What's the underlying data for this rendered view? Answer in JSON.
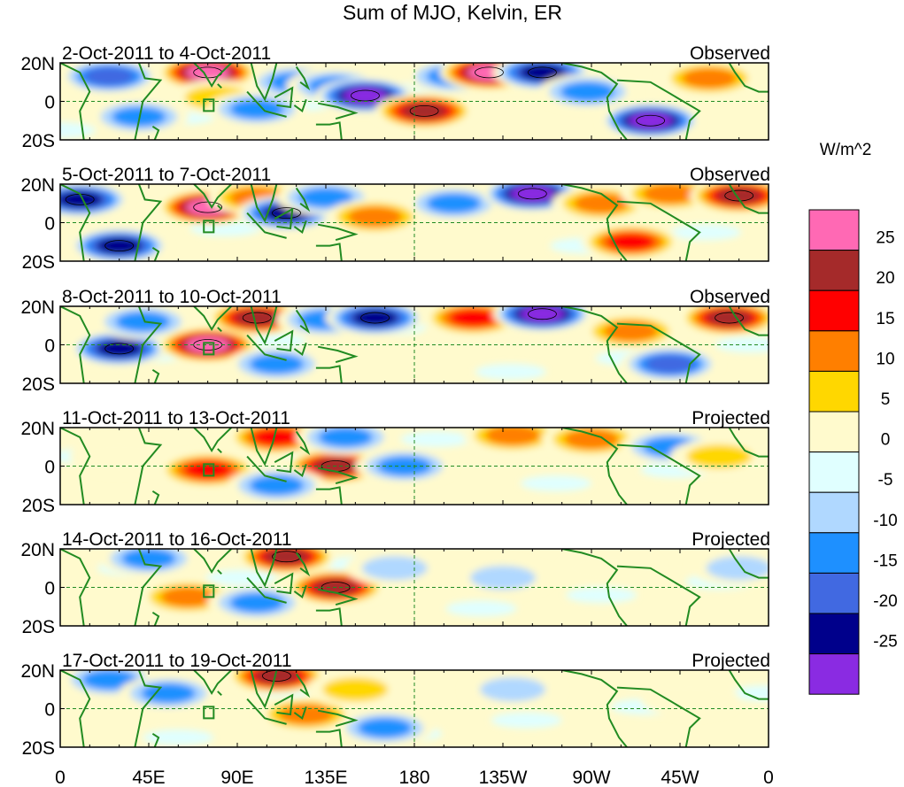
{
  "chart_data": {
    "type": "heatmap",
    "title": "Sum of MJO, Kelvin, ER",
    "colorbar": {
      "units": "W/m^2",
      "labels": [
        "25",
        "20",
        "15",
        "10",
        "5",
        "0",
        "-5",
        "-10",
        "-15",
        "-20",
        "-25"
      ],
      "colors": [
        "#ff69b4",
        "#a52a2a",
        "#ff0000",
        "#ff7f00",
        "#ffd700",
        "#fffacd",
        "#e0ffff",
        "#b0d8ff",
        "#1e90ff",
        "#4169e1",
        "#00008b",
        "#8a2be2"
      ]
    },
    "x_ticks": [
      "0",
      "45E",
      "90E",
      "135E",
      "180",
      "135W",
      "90W",
      "45W",
      "0"
    ],
    "x_range_lon": [
      0,
      360
    ],
    "y_ticks": [
      "20N",
      "0",
      "20S"
    ],
    "y_range_lat": [
      -20,
      20
    ],
    "panels": [
      {
        "date_range": "2-Oct-2011 to 4-Oct-2011",
        "status": "Observed"
      },
      {
        "date_range": "5-Oct-2011 to 7-Oct-2011",
        "status": "Observed"
      },
      {
        "date_range": "8-Oct-2011 to 10-Oct-2011",
        "status": "Observed"
      },
      {
        "date_range": "11-Oct-2011 to 13-Oct-2011",
        "status": "Projected"
      },
      {
        "date_range": "14-Oct-2011 to 16-Oct-2011",
        "status": "Projected"
      },
      {
        "date_range": "17-Oct-2011 to 19-Oct-2011",
        "status": "Projected"
      }
    ],
    "anomalies": [
      [
        {
          "lon": 25,
          "lat": 13,
          "v": -18
        },
        {
          "lon": 40,
          "lat": -8,
          "v": -12
        },
        {
          "lon": 75,
          "lat": 15,
          "v": 28
        },
        {
          "lon": 80,
          "lat": 2,
          "v": 8
        },
        {
          "lon": 100,
          "lat": -4,
          "v": -12
        },
        {
          "lon": 120,
          "lat": 10,
          "v": -10
        },
        {
          "lon": 140,
          "lat": 8,
          "v": -10
        },
        {
          "lon": 155,
          "lat": 3,
          "v": -27
        },
        {
          "lon": 185,
          "lat": -5,
          "v": 20
        },
        {
          "lon": 200,
          "lat": 13,
          "v": -14
        },
        {
          "lon": 218,
          "lat": 15,
          "v": 26
        },
        {
          "lon": 245,
          "lat": 15,
          "v": -22
        },
        {
          "lon": 268,
          "lat": 5,
          "v": -10
        },
        {
          "lon": 300,
          "lat": -10,
          "v": -25
        },
        {
          "lon": 330,
          "lat": 12,
          "v": 14
        }
      ],
      [
        {
          "lon": 10,
          "lat": 12,
          "v": -20
        },
        {
          "lon": 30,
          "lat": -12,
          "v": -22
        },
        {
          "lon": 75,
          "lat": 8,
          "v": 28
        },
        {
          "lon": 100,
          "lat": 13,
          "v": 12
        },
        {
          "lon": 115,
          "lat": 5,
          "v": -22
        },
        {
          "lon": 135,
          "lat": 13,
          "v": -14
        },
        {
          "lon": 160,
          "lat": 3,
          "v": 14
        },
        {
          "lon": 200,
          "lat": 10,
          "v": -10
        },
        {
          "lon": 240,
          "lat": 15,
          "v": -27
        },
        {
          "lon": 275,
          "lat": 10,
          "v": 12
        },
        {
          "lon": 290,
          "lat": -10,
          "v": 18
        },
        {
          "lon": 310,
          "lat": 15,
          "v": 10
        },
        {
          "lon": 345,
          "lat": 14,
          "v": 20
        }
      ],
      [
        {
          "lon": 30,
          "lat": -2,
          "v": -22
        },
        {
          "lon": 42,
          "lat": 12,
          "v": -10
        },
        {
          "lon": 75,
          "lat": 0,
          "v": 28
        },
        {
          "lon": 100,
          "lat": 14,
          "v": 22
        },
        {
          "lon": 135,
          "lat": 13,
          "v": -14
        },
        {
          "lon": 160,
          "lat": 14,
          "v": -24
        },
        {
          "lon": 110,
          "lat": -10,
          "v": -10
        },
        {
          "lon": 210,
          "lat": 14,
          "v": 18
        },
        {
          "lon": 245,
          "lat": 16,
          "v": -27
        },
        {
          "lon": 290,
          "lat": 7,
          "v": 10
        },
        {
          "lon": 310,
          "lat": -10,
          "v": -18
        },
        {
          "lon": 340,
          "lat": 14,
          "v": 24
        }
      ],
      [
        {
          "lon": 30,
          "lat": 5,
          "v": 4
        },
        {
          "lon": 75,
          "lat": -2,
          "v": 18
        },
        {
          "lon": 110,
          "lat": 15,
          "v": 18
        },
        {
          "lon": 140,
          "lat": 0,
          "v": 20
        },
        {
          "lon": 110,
          "lat": -10,
          "v": -14
        },
        {
          "lon": 145,
          "lat": 15,
          "v": -12
        },
        {
          "lon": 175,
          "lat": 0,
          "v": -10
        },
        {
          "lon": 230,
          "lat": 16,
          "v": 12
        },
        {
          "lon": 270,
          "lat": 14,
          "v": 14
        },
        {
          "lon": 310,
          "lat": 10,
          "v": -12
        },
        {
          "lon": 335,
          "lat": 5,
          "v": 8
        }
      ],
      [
        {
          "lon": 45,
          "lat": 15,
          "v": -10
        },
        {
          "lon": 65,
          "lat": -5,
          "v": 14
        },
        {
          "lon": 115,
          "lat": 16,
          "v": 20
        },
        {
          "lon": 140,
          "lat": 0,
          "v": 22
        },
        {
          "lon": 100,
          "lat": -8,
          "v": -10
        },
        {
          "lon": 170,
          "lat": 10,
          "v": -8
        },
        {
          "lon": 225,
          "lat": 5,
          "v": -8
        },
        {
          "lon": 280,
          "lat": 10,
          "v": 4
        },
        {
          "lon": 345,
          "lat": 10,
          "v": -8
        }
      ],
      [
        {
          "lon": 25,
          "lat": 15,
          "v": -10
        },
        {
          "lon": 55,
          "lat": 8,
          "v": -12
        },
        {
          "lon": 110,
          "lat": 17,
          "v": 24
        },
        {
          "lon": 125,
          "lat": -3,
          "v": 14
        },
        {
          "lon": 150,
          "lat": 10,
          "v": 6
        },
        {
          "lon": 165,
          "lat": -10,
          "v": -10
        },
        {
          "lon": 230,
          "lat": 10,
          "v": -6
        },
        {
          "lon": 320,
          "lat": 5,
          "v": 4
        }
      ]
    ]
  }
}
